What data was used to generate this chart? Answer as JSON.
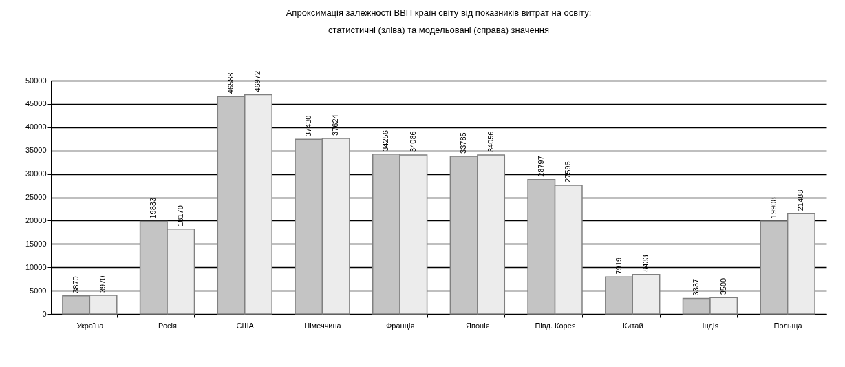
{
  "chart_data": {
    "type": "bar",
    "title": "Апроксимація залежності ВВП країн світу від показників витрат на освіту:\nстатистичні (зліва) та модельовані (справа) значення",
    "categories": [
      "Україна",
      "Росія",
      "США",
      "Німеччина",
      "Франція",
      "Японія",
      "Півд. Корея",
      "Китай",
      "Індія",
      "Польща"
    ],
    "series": [
      {
        "color": "#c4c4c4",
        "values": [
          3870,
          19833,
          46588,
          37430,
          34256,
          33785,
          28797,
          7919,
          3337,
          19908
        ]
      },
      {
        "color": "#ececec",
        "values": [
          3970,
          18170,
          46972,
          37624,
          34086,
          34056,
          27596,
          8433,
          3500,
          21488
        ]
      }
    ],
    "ylim": [
      0,
      50000
    ],
    "yticks": [
      0,
      5000,
      10000,
      15000,
      20000,
      25000,
      30000,
      35000,
      40000,
      45000,
      50000
    ],
    "grid": "y",
    "data_labels": true
  }
}
